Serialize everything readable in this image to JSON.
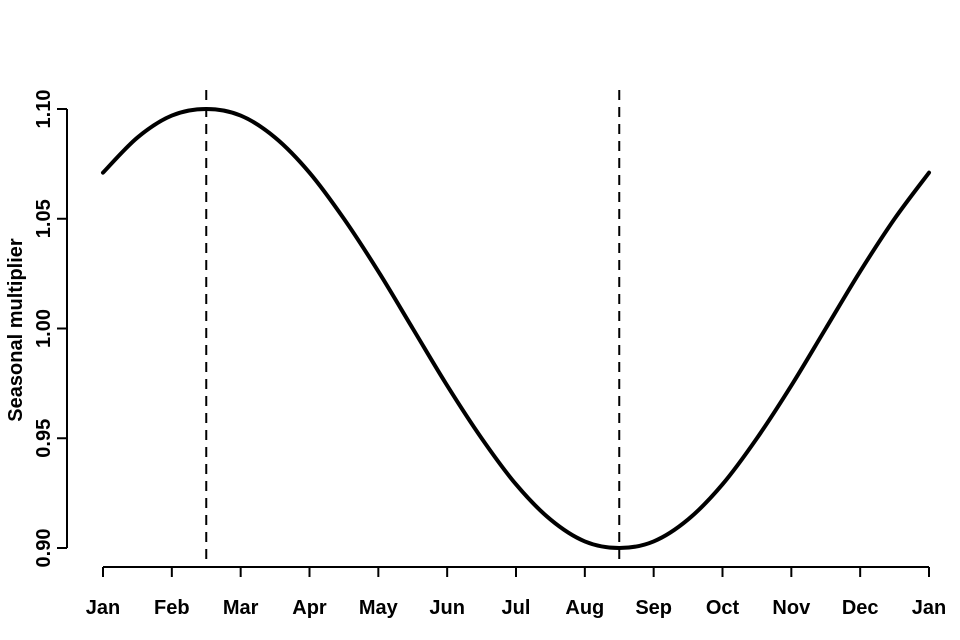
{
  "chart_data": {
    "type": "line",
    "title": "",
    "xlabel": "",
    "ylabel": "Seasonal multiplier",
    "x_tick_labels": [
      "Jan",
      "Feb",
      "Mar",
      "Apr",
      "May",
      "Jun",
      "Jul",
      "Aug",
      "Sep",
      "Oct",
      "Nov",
      "Dec",
      "Jan"
    ],
    "y_ticks": [
      0.9,
      0.95,
      1.0,
      1.05,
      1.1
    ],
    "y_tick_labels": [
      "0.90",
      "0.95",
      "1.00",
      "1.05",
      "1.10"
    ],
    "xlim": [
      0,
      12
    ],
    "ylim": [
      0.9,
      1.1
    ],
    "grid": false,
    "series": [
      {
        "x": [
          0,
          0.5,
          1,
          1.5,
          2,
          2.5,
          3,
          3.5,
          4,
          4.5,
          5,
          5.5,
          6,
          6.5,
          7,
          7.5,
          8,
          8.5,
          9,
          9.5,
          10,
          10.5,
          11,
          11.5,
          12
        ],
        "values": [
          1.071,
          1.087,
          1.097,
          1.1,
          1.097,
          1.087,
          1.071,
          1.05,
          1.026,
          1.0,
          0.974,
          0.95,
          0.929,
          0.913,
          0.903,
          0.9,
          0.903,
          0.913,
          0.929,
          0.95,
          0.974,
          1.0,
          1.026,
          1.05,
          1.071
        ]
      }
    ],
    "vertical_reference_lines": [
      1.5,
      7.5
    ],
    "colors": {
      "line": "#000000",
      "reference": "#000000"
    }
  }
}
